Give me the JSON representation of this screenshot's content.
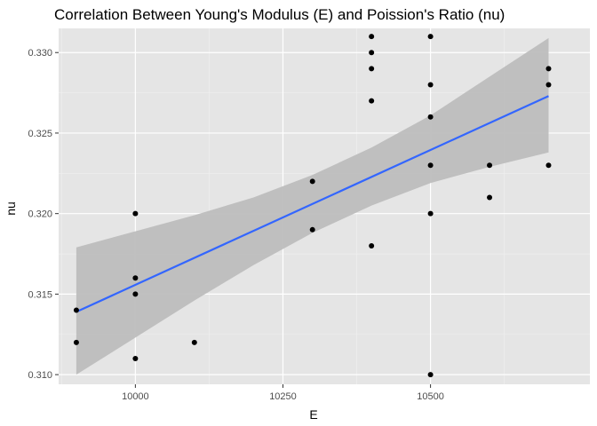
{
  "chart_data": {
    "type": "scatter",
    "title": "Correlation Between Young's Modulus (E) and Poission's Ratio (nu)",
    "xlabel": "E",
    "ylabel": "nu",
    "xlim": [
      9870,
      10770
    ],
    "ylim": [
      0.3094,
      0.3315
    ],
    "x_ticks": [
      {
        "value": 10000,
        "label": "10000"
      },
      {
        "value": 10250,
        "label": "10250"
      },
      {
        "value": 10500,
        "label": "10500"
      }
    ],
    "x_minor_ticks": [
      9875,
      10125,
      10375,
      10625
    ],
    "y_ticks": [
      {
        "value": 0.31,
        "label": "0.310"
      },
      {
        "value": 0.315,
        "label": "0.315"
      },
      {
        "value": 0.32,
        "label": "0.320"
      },
      {
        "value": 0.325,
        "label": "0.325"
      },
      {
        "value": 0.33,
        "label": "0.330"
      }
    ],
    "y_minor_ticks": [
      0.3125,
      0.3175,
      0.3225,
      0.3275
    ],
    "grid": true,
    "points": [
      {
        "x": 9900,
        "y": 0.314
      },
      {
        "x": 9900,
        "y": 0.312
      },
      {
        "x": 10000,
        "y": 0.32
      },
      {
        "x": 10000,
        "y": 0.316
      },
      {
        "x": 10000,
        "y": 0.315
      },
      {
        "x": 10000,
        "y": 0.311
      },
      {
        "x": 10100,
        "y": 0.312
      },
      {
        "x": 10300,
        "y": 0.322
      },
      {
        "x": 10300,
        "y": 0.319
      },
      {
        "x": 10400,
        "y": 0.331
      },
      {
        "x": 10400,
        "y": 0.33
      },
      {
        "x": 10400,
        "y": 0.329
      },
      {
        "x": 10400,
        "y": 0.327
      },
      {
        "x": 10400,
        "y": 0.318
      },
      {
        "x": 10500,
        "y": 0.331
      },
      {
        "x": 10500,
        "y": 0.328
      },
      {
        "x": 10500,
        "y": 0.326
      },
      {
        "x": 10500,
        "y": 0.323
      },
      {
        "x": 10500,
        "y": 0.32
      },
      {
        "x": 10500,
        "y": 0.31
      },
      {
        "x": 10600,
        "y": 0.323
      },
      {
        "x": 10600,
        "y": 0.321
      },
      {
        "x": 10700,
        "y": 0.329
      },
      {
        "x": 10700,
        "y": 0.328
      },
      {
        "x": 10700,
        "y": 0.323
      }
    ],
    "trend_line": {
      "x": [
        9900,
        10700
      ],
      "y": [
        0.3139,
        0.3273
      ]
    },
    "confidence_band": {
      "x": [
        9900,
        10000,
        10100,
        10200,
        10300,
        10400,
        10500,
        10600,
        10700
      ],
      "lower": [
        0.31,
        0.3123,
        0.3146,
        0.3168,
        0.3188,
        0.3205,
        0.3219,
        0.3229,
        0.3238
      ],
      "upper": [
        0.3179,
        0.3189,
        0.3199,
        0.321,
        0.3224,
        0.3241,
        0.3261,
        0.3285,
        0.3309
      ]
    },
    "colors": {
      "panel": "#e5e5e5",
      "grid_major": "#ffffff",
      "grid_minor": "#f0f0f0",
      "band": "#bdbdbd",
      "trend": "#3366ff",
      "point": "#000000"
    }
  }
}
